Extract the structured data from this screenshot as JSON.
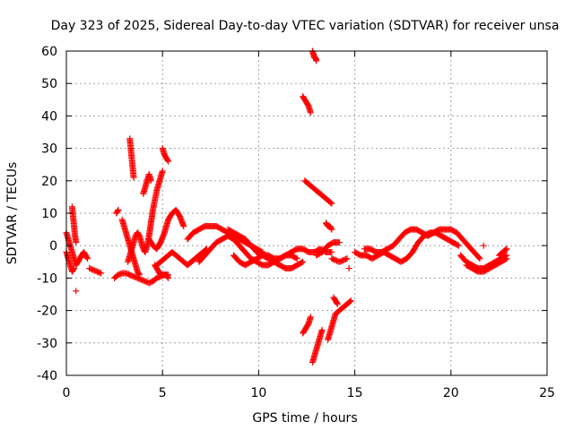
{
  "chart_data": {
    "type": "scatter",
    "title": "Day 323 of 2025, Sidereal Day-to-day VTEC variation (SDTVAR) for receiver unsa",
    "xlabel": "GPS time / hours",
    "ylabel": "SDTVAR / TECUs",
    "xlim": [
      0,
      25
    ],
    "ylim": [
      -40,
      60
    ],
    "xticks": [
      0,
      5,
      10,
      15,
      20,
      25
    ],
    "yticks": [
      -40,
      -30,
      -20,
      -10,
      0,
      10,
      20,
      30,
      40,
      50,
      60
    ],
    "grid": true,
    "marker": "+",
    "color": "#ff0000",
    "series": [
      {
        "name": "SDTVAR",
        "tracks": [
          {
            "x": [
              0.0,
              0.1,
              0.2,
              0.3,
              0.4,
              0.5,
              0.6,
              0.7,
              0.8,
              0.9,
              1.0,
              1.1
            ],
            "y": [
              4,
              2,
              0,
              -2,
              -4,
              -6,
              -5,
              -4,
              -3,
              -2,
              -3,
              -4
            ]
          },
          {
            "x": [
              0.0,
              0.1,
              0.2,
              0.3,
              0.4
            ],
            "y": [
              -2,
              -4,
              -6,
              -8,
              -7
            ]
          },
          {
            "x": [
              0.3,
              0.35,
              0.4,
              0.45,
              0.5
            ],
            "y": [
              12,
              9,
              6,
              3,
              1
            ]
          },
          {
            "x": [
              0.5
            ],
            "y": [
              -14
            ]
          },
          {
            "x": [
              1.2,
              1.4,
              1.6,
              1.8
            ],
            "y": [
              -7,
              -7.5,
              -8,
              -8.5
            ]
          },
          {
            "x": [
              2.6,
              2.7
            ],
            "y": [
              10,
              11
            ]
          },
          {
            "x": [
              2.5,
              2.7,
              2.9,
              3.1,
              3.3,
              3.5,
              3.7,
              3.9,
              4.1,
              4.3,
              4.5,
              4.7,
              4.9,
              5.1,
              5.3
            ],
            "y": [
              -10,
              -9,
              -8.5,
              -8.5,
              -9,
              -9.5,
              -10,
              -10.5,
              -11,
              -11.5,
              -11,
              -10,
              -9.5,
              -9,
              -9
            ]
          },
          {
            "x": [
              2.9,
              3.0,
              3.1,
              3.2,
              3.3,
              3.4,
              3.5,
              3.6,
              3.7,
              3.8
            ],
            "y": [
              8,
              6,
              4,
              2,
              0,
              -2,
              -4,
              -6,
              -8,
              -9
            ]
          },
          {
            "x": [
              3.3,
              3.35,
              3.4,
              3.45,
              3.5
            ],
            "y": [
              33,
              30,
              27,
              24,
              21
            ]
          },
          {
            "x": [
              3.2,
              3.3,
              3.4,
              3.5,
              3.6,
              3.7,
              3.8,
              3.9,
              4.0,
              4.1,
              4.2,
              4.3,
              4.4,
              4.5,
              4.6,
              4.7,
              4.8,
              4.9,
              5.0
            ],
            "y": [
              -5,
              -3,
              -1,
              1,
              3,
              4,
              3,
              1,
              -1,
              -2,
              0,
              3,
              7,
              11,
              14,
              17,
              19,
              21,
              23
            ]
          },
          {
            "x": [
              4.0,
              4.1,
              4.2,
              4.3,
              4.4
            ],
            "y": [
              16,
              18,
              20,
              22,
              20
            ]
          },
          {
            "x": [
              4.6,
              4.7,
              4.8,
              4.9,
              5.0,
              5.1,
              5.2,
              5.3
            ],
            "y": [
              -6,
              -7,
              -8,
              -9,
              -9,
              -9,
              -9,
              -10
            ]
          },
          {
            "x": [
              5.0,
              5.1,
              5.2,
              5.3
            ],
            "y": [
              30,
              28,
              27,
              26
            ]
          },
          {
            "x": [
              4.3,
              4.5,
              4.7,
              4.9,
              5.1,
              5.3,
              5.5,
              5.7,
              5.9,
              6.1
            ],
            "y": [
              2,
              0,
              -1,
              1,
              4,
              8,
              10,
              11,
              9,
              6
            ]
          },
          {
            "x": [
              4.7,
              4.9,
              5.1,
              5.3,
              5.5,
              5.7,
              5.9,
              6.1,
              6.3,
              6.5,
              6.7,
              6.9,
              7.1,
              7.3
            ],
            "y": [
              -6,
              -5,
              -4,
              -3,
              -2,
              -3,
              -4,
              -5,
              -6,
              -5,
              -4,
              -3,
              -2,
              -1
            ]
          },
          {
            "x": [
              6.3,
              6.6,
              6.9,
              7.2,
              7.5,
              7.8,
              8.1,
              8.4,
              8.7,
              9.0,
              9.3,
              9.6,
              9.9,
              10.2
            ],
            "y": [
              2,
              4,
              5,
              6,
              6,
              6,
              5,
              4,
              3,
              2,
              1,
              0,
              -1,
              -2
            ]
          },
          {
            "x": [
              6.9,
              7.2,
              7.5,
              7.8,
              8.1,
              8.4,
              8.7,
              9.0,
              9.3,
              9.6,
              9.9,
              10.2,
              10.5,
              10.8,
              11.1,
              11.4,
              11.7,
              12.0
            ],
            "y": [
              -5,
              -3,
              -1,
              1,
              2,
              3,
              2,
              0,
              -2,
              -4,
              -5,
              -6,
              -6,
              -5,
              -4,
              -3,
              -3,
              -4
            ]
          },
          {
            "x": [
              8.7,
              9.0,
              9.3,
              9.6,
              9.9,
              10.2,
              10.5,
              10.8,
              11.1,
              11.4,
              11.7,
              12.0,
              12.3
            ],
            "y": [
              -3,
              -5,
              -6,
              -5,
              -4,
              -3,
              -4,
              -5,
              -6,
              -7,
              -7,
              -6,
              -5
            ]
          },
          {
            "x": [
              8.4,
              8.7,
              9.0,
              9.3,
              9.6,
              9.9,
              10.2,
              10.5,
              10.8,
              11.1,
              11.4,
              11.7,
              12.0,
              12.3,
              12.6,
              12.9,
              13.2,
              13.5,
              13.8
            ],
            "y": [
              5,
              4,
              3,
              2,
              0,
              -2,
              -3,
              -3,
              -4,
              -4,
              -3,
              -2,
              -1,
              -1,
              -2,
              -2,
              -1,
              -2,
              -2
            ]
          },
          {
            "x": [
              12.3,
              12.4,
              12.5,
              12.6,
              12.7
            ],
            "y": [
              46,
              45,
              44,
              43,
              41
            ]
          },
          {
            "x": [
              12.8,
              12.85,
              12.9,
              12.95,
              13.0
            ],
            "y": [
              60,
              59,
              58,
              58,
              57
            ]
          },
          {
            "x": [
              12.4,
              12.6,
              12.8,
              13.0,
              13.2,
              13.4,
              13.6,
              13.8
            ],
            "y": [
              20,
              19,
              18,
              17,
              16,
              15,
              14,
              13
            ]
          },
          {
            "x": [
              13.5,
              13.6,
              13.7,
              13.8
            ],
            "y": [
              7,
              6,
              6,
              5
            ]
          },
          {
            "x": [
              12.3,
              12.4,
              12.5,
              12.6,
              12.7
            ],
            "y": [
              -27,
              -26,
              -25,
              -24,
              -22
            ]
          },
          {
            "x": [
              12.8,
              12.9,
              13.0,
              13.1,
              13.2,
              13.3
            ],
            "y": [
              -36,
              -34,
              -32,
              -30,
              -28,
              -26
            ]
          },
          {
            "x": [
              13.6,
              13.7,
              13.8,
              13.9,
              14.0,
              14.2,
              14.4,
              14.6,
              14.8
            ],
            "y": [
              -29,
              -27,
              -25,
              -23,
              -21,
              -20,
              -19,
              -18,
              -17
            ]
          },
          {
            "x": [
              13.9,
              14.0,
              14.1
            ],
            "y": [
              -16,
              -17,
              -18
            ]
          },
          {
            "x": [
              13.0,
              13.3,
              13.6,
              13.9,
              14.2
            ],
            "y": [
              -3,
              -2,
              0,
              1,
              1
            ]
          },
          {
            "x": [
              13.8,
              14.0,
              14.2,
              14.4,
              14.6
            ],
            "y": [
              -4,
              -4.5,
              -5,
              -4.5,
              -4
            ]
          },
          {
            "x": [
              14.7
            ],
            "y": [
              -7
            ]
          },
          {
            "x": [
              15.0,
              15.3,
              15.6,
              15.9,
              16.2,
              16.5,
              16.8,
              17.1,
              17.4,
              17.7,
              18.0,
              18.3,
              18.6,
              18.9,
              19.2,
              19.5,
              19.8,
              20.1,
              20.4
            ],
            "y": [
              -2,
              -3,
              -3,
              -4,
              -3,
              -2,
              -3,
              -4,
              -5,
              -4,
              -2,
              1,
              3,
              4,
              4,
              3,
              2,
              1,
              0
            ]
          },
          {
            "x": [
              15.5,
              15.8,
              16.1,
              16.4,
              16.7,
              17.0,
              17.3,
              17.6,
              17.9,
              18.2,
              18.5,
              18.8,
              19.1,
              19.4,
              19.7,
              20.0,
              20.3,
              20.6,
              20.9,
              21.2,
              21.5
            ],
            "y": [
              -1,
              -1,
              -2,
              -2,
              -1,
              0,
              2,
              4,
              5,
              5,
              4,
              3,
              4,
              5,
              5,
              5,
              4,
              2,
              0,
              -2,
              -4
            ]
          },
          {
            "x": [
              20.5,
              20.8,
              21.1,
              21.4,
              21.7,
              22.0,
              22.3,
              22.6,
              22.9
            ],
            "y": [
              -3,
              -5,
              -6,
              -7,
              -7,
              -6,
              -5,
              -4,
              -3
            ]
          },
          {
            "x": [
              20.8,
              21.1,
              21.4,
              21.7,
              22.0,
              22.3,
              22.6,
              22.9
            ],
            "y": [
              -6,
              -7,
              -8,
              -8,
              -7,
              -6,
              -5,
              -4
            ]
          },
          {
            "x": [
              21.7
            ],
            "y": [
              0
            ]
          },
          {
            "x": [
              22.5,
              22.7,
              22.9
            ],
            "y": [
              -3,
              -2,
              -1
            ]
          }
        ]
      }
    ]
  }
}
